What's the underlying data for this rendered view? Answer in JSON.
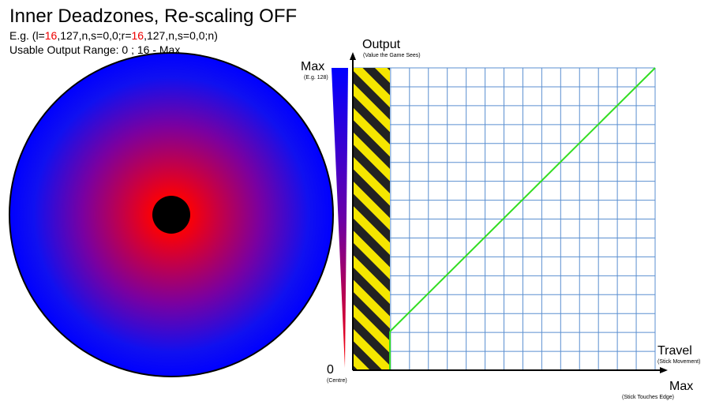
{
  "header": {
    "title": "Inner Deadzones, Re-scaling OFF",
    "example": [
      "E.g. (l=",
      "16",
      ",127,n,s=0,0;r=",
      "16",
      ",127,n,s=0,0;n)"
    ],
    "range": "Usable Output Range: 0 ; 16 - Max"
  },
  "graph": {
    "y_axis": {
      "title": "Output",
      "subtitle": "(Value the Game Sees)"
    },
    "scale_top": {
      "label": "Max",
      "note": "(E.g. 128)"
    },
    "scale_bottom": {
      "label": "0",
      "note": "(Centre)"
    },
    "x_axis": {
      "title": "Travel",
      "subtitle": "(Stick Movement)"
    },
    "x_end": {
      "label": "Max",
      "note": "(Stick Touches Edge)"
    }
  }
}
